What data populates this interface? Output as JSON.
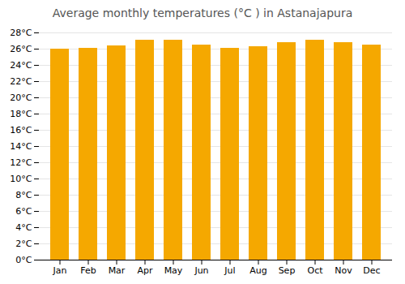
{
  "chart_data": {
    "type": "bar",
    "title": "Average monthly temperatures (°C ) in Astanajapura",
    "categories": [
      "Jan",
      "Feb",
      "Mar",
      "Apr",
      "May",
      "Jun",
      "Jul",
      "Aug",
      "Sep",
      "Oct",
      "Nov",
      "Dec"
    ],
    "values": [
      26.0,
      26.1,
      26.4,
      27.1,
      27.1,
      26.5,
      26.1,
      26.3,
      26.8,
      27.1,
      26.8,
      26.5
    ],
    "color": "#F5A800",
    "ylim": [
      0,
      28
    ],
    "yticks": [
      {
        "value": 0,
        "label": "0°C"
      },
      {
        "value": 2,
        "label": "2°C"
      },
      {
        "value": 4,
        "label": "4°C"
      },
      {
        "value": 6,
        "label": "6°C"
      },
      {
        "value": 8,
        "label": "8°C"
      },
      {
        "value": 10,
        "label": "10°C"
      },
      {
        "value": 12,
        "label": "12°C"
      },
      {
        "value": 14,
        "label": "14°C"
      },
      {
        "value": 16,
        "label": "16°C"
      },
      {
        "value": 18,
        "label": "18°C"
      },
      {
        "value": 20,
        "label": "20°C"
      },
      {
        "value": 22,
        "label": "22°C"
      },
      {
        "value": 24,
        "label": "24°C"
      },
      {
        "value": 26,
        "label": "26°C"
      },
      {
        "value": 28,
        "label": "28°C"
      }
    ],
    "grid": true
  }
}
